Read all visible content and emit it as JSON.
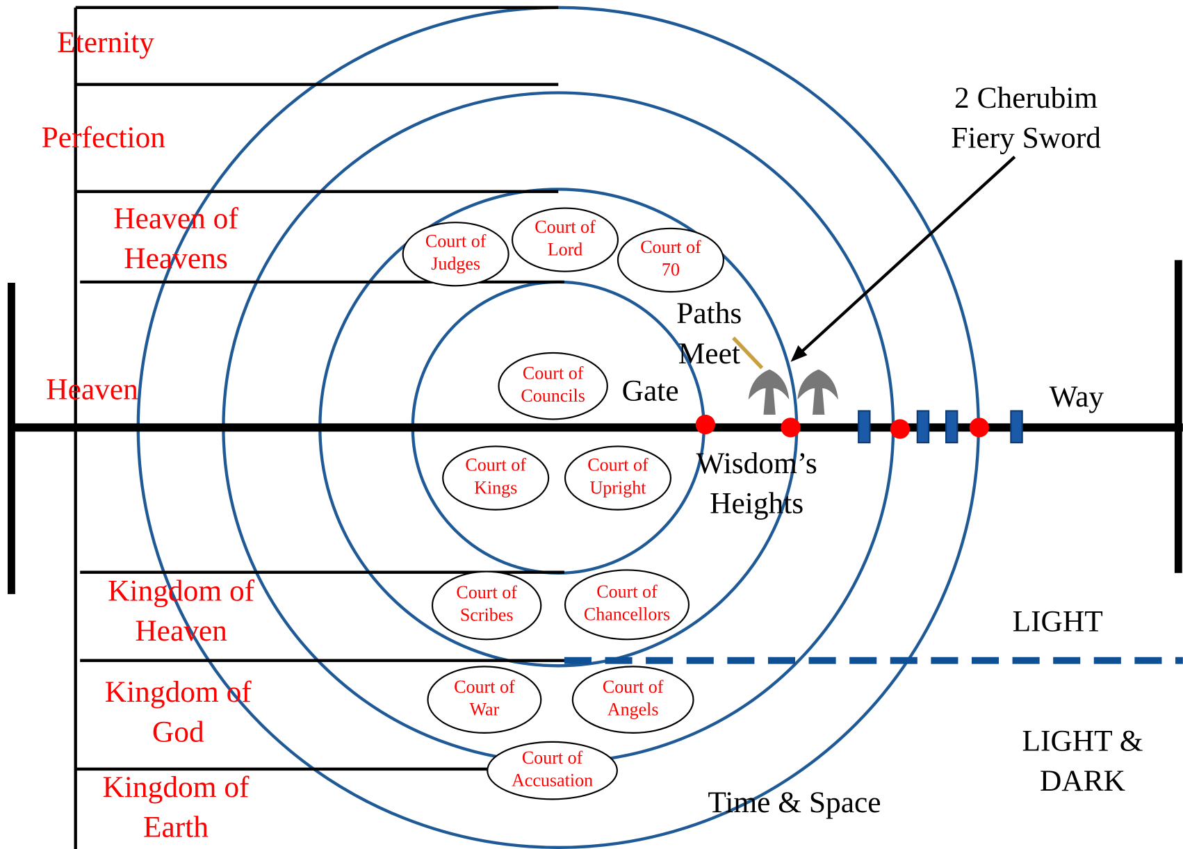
{
  "realms": [
    {
      "lines": [
        "Eternity"
      ]
    },
    {
      "lines": [
        "Perfection"
      ]
    },
    {
      "lines": [
        "Heaven of",
        "Heavens"
      ]
    },
    {
      "lines": [
        "Heaven"
      ]
    },
    {
      "lines": [
        "Kingdom of",
        "Heaven"
      ]
    },
    {
      "lines": [
        "Kingdom of",
        "God"
      ]
    },
    {
      "lines": [
        "Kingdom of",
        "Earth"
      ]
    }
  ],
  "courts": [
    {
      "lines": [
        "Court of",
        "Judges"
      ]
    },
    {
      "lines": [
        "Court of",
        "Lord"
      ]
    },
    {
      "lines": [
        "Court of",
        "70"
      ]
    },
    {
      "lines": [
        "Court of",
        "Councils"
      ]
    },
    {
      "lines": [
        "Court of",
        "Kings"
      ]
    },
    {
      "lines": [
        "Court of",
        "Upright"
      ]
    },
    {
      "lines": [
        "Court of",
        "Scribes"
      ]
    },
    {
      "lines": [
        "Court of",
        "Chancellors"
      ]
    },
    {
      "lines": [
        "Court of",
        "War"
      ]
    },
    {
      "lines": [
        "Court of",
        "Angels"
      ]
    },
    {
      "lines": [
        "Court of",
        "Accusation"
      ]
    }
  ],
  "labels": [
    {
      "lines": [
        "2 Cherubim",
        "Fiery Sword"
      ]
    },
    {
      "lines": [
        "Paths",
        "Meet"
      ]
    },
    {
      "lines": [
        "Gate"
      ]
    },
    {
      "lines": [
        "Way"
      ]
    },
    {
      "lines": [
        "Wisdom’s",
        "Heights"
      ]
    },
    {
      "lines": [
        "LIGHT"
      ]
    },
    {
      "lines": [
        "LIGHT &",
        "DARK"
      ]
    },
    {
      "lines": [
        "Time & Space"
      ]
    }
  ]
}
